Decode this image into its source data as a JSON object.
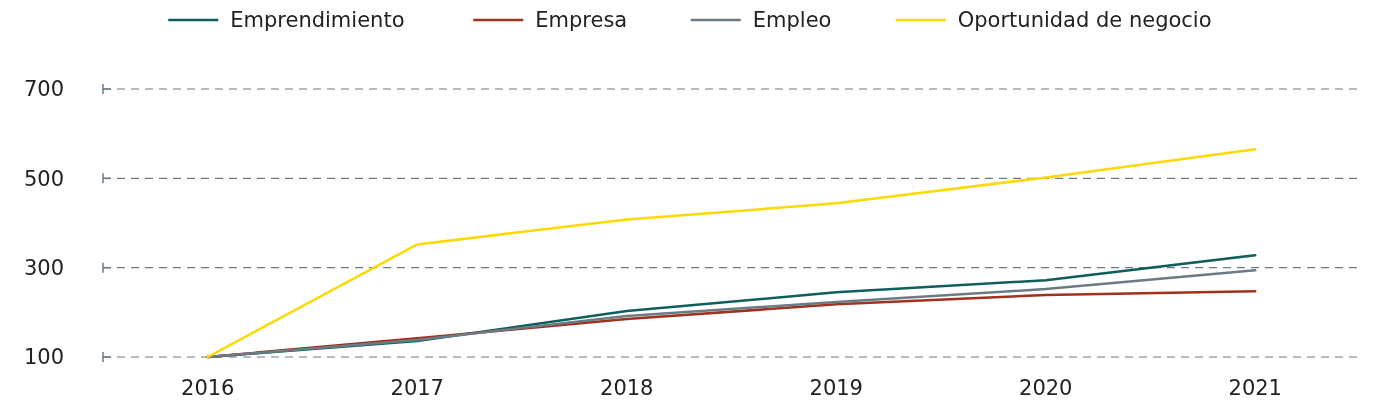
{
  "chart_data": {
    "type": "line",
    "categories": [
      "2016",
      "2017",
      "2018",
      "2019",
      "2020",
      "2021"
    ],
    "series": [
      {
        "name": "Emprendimiento",
        "color": "#0e5e5b",
        "values": [
          100,
          136,
          203,
          245,
          272,
          328
        ]
      },
      {
        "name": "Empresa",
        "color": "#a0321d",
        "values": [
          100,
          142,
          185,
          218,
          239,
          247
        ]
      },
      {
        "name": "Empleo",
        "color": "#6b7b85",
        "values": [
          100,
          138,
          192,
          223,
          252,
          294
        ]
      },
      {
        "name": "Oportunidad de negocio",
        "color": "#fcd900",
        "values": [
          100,
          352,
          408,
          444,
          502,
          565
        ]
      }
    ],
    "ylim": [
      100,
      700
    ],
    "yticks": [
      100,
      300,
      500,
      700
    ],
    "grid": "y",
    "legend": "top",
    "line_style": "solid",
    "marker": "none"
  }
}
